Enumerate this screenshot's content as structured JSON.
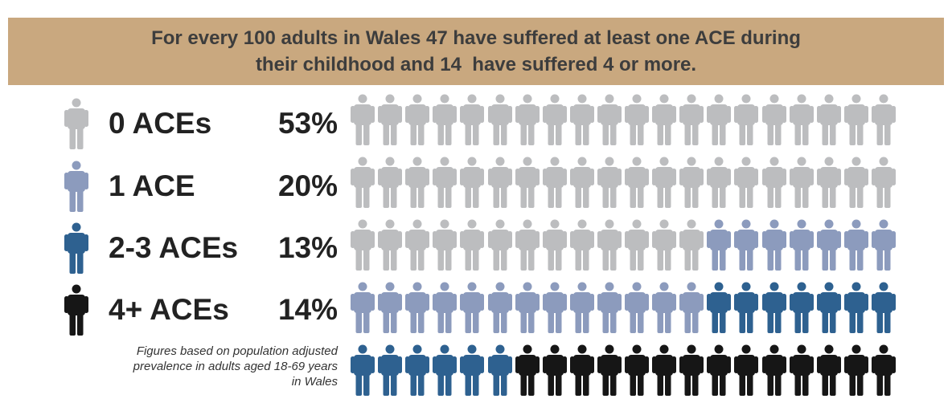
{
  "banner": {
    "line1": "For every 100 adults in Wales 47 have suffered at least one ACE during",
    "line2": "their childhood and 14  have suffered 4 or more."
  },
  "footnote": {
    "line1": "Figures based on population adjusted",
    "line2": "prevalence in adults aged 18-69 years",
    "line3": "in Wales"
  },
  "colors": {
    "banner": "#c9a87f",
    "zero": "#bcbdbf",
    "one": "#8c9bbd",
    "two_three": "#2e6190",
    "four_plus": "#161616"
  },
  "chart_data": {
    "type": "pictogram",
    "title": "For every 100 adults in Wales 47 have suffered at least one ACE during their childhood and 14  have suffered 4 or more.",
    "total": 100,
    "grid": {
      "rows": 5,
      "columns": 20
    },
    "categories": [
      "0 ACEs",
      "1 ACE",
      "2-3 ACEs",
      "4+ ACEs"
    ],
    "series": [
      {
        "name": "0 ACEs",
        "value": 53,
        "label": "53%",
        "color": "#bcbdbf"
      },
      {
        "name": "1 ACE",
        "value": 20,
        "label": "20%",
        "color": "#8c9bbd"
      },
      {
        "name": "2-3 ACEs",
        "value": 13,
        "label": "13%",
        "color": "#2e6190"
      },
      {
        "name": "4+ ACEs",
        "value": 14,
        "label": "14%",
        "color": "#161616"
      }
    ],
    "legend_position": "left"
  }
}
